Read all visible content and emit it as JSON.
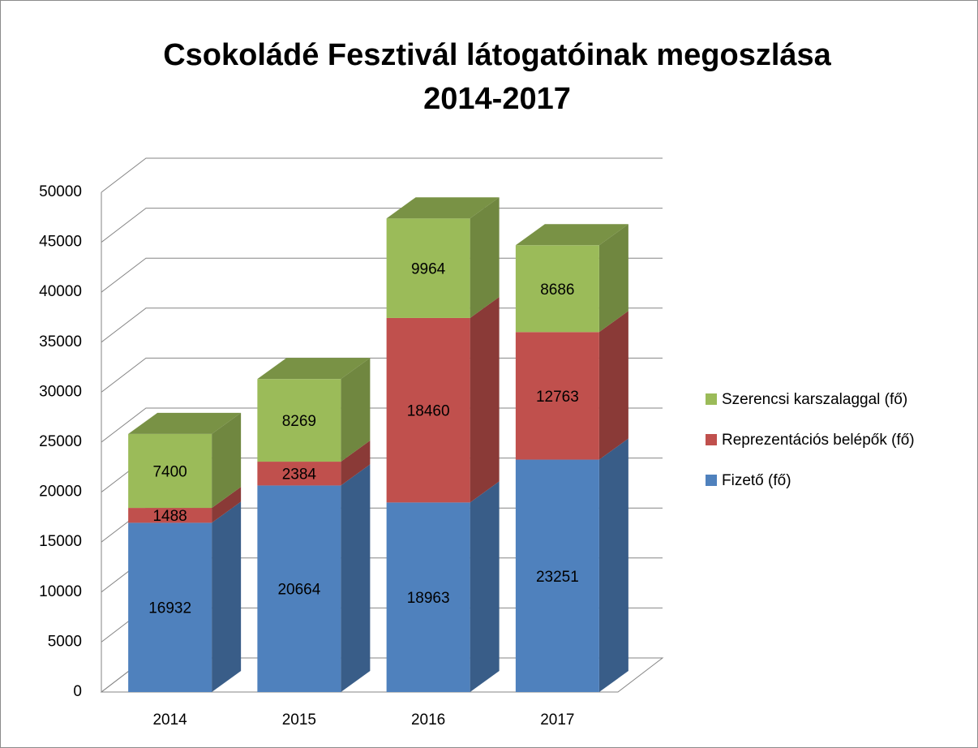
{
  "chart_data": {
    "type": "bar3d_stacked",
    "title": [
      "Csokoládé Fesztivál látogatóinak megoszlása",
      "2014-2017"
    ],
    "categories": [
      "2014",
      "2015",
      "2016",
      "2017"
    ],
    "series": [
      {
        "name": "Fizető (fő)",
        "color": "#4f81bd",
        "values": [
          16932,
          20664,
          18963,
          23251
        ]
      },
      {
        "name": "Reprezentációs belépők (fő)",
        "color": "#c0504d",
        "values": [
          1488,
          2384,
          18460,
          12763
        ]
      },
      {
        "name": "Szerencsi karszalaggal (fő)",
        "color": "#9bbb59",
        "values": [
          7400,
          8269,
          9964,
          8686
        ]
      }
    ],
    "ylim": [
      0,
      50000
    ],
    "yticks": [
      0,
      5000,
      10000,
      15000,
      20000,
      25000,
      30000,
      35000,
      40000,
      45000,
      50000
    ],
    "grid": true,
    "legend": "right"
  }
}
